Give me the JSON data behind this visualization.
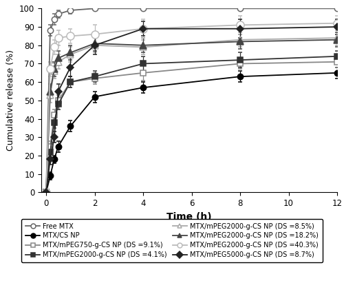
{
  "xlabel": "Time (h)",
  "ylabel": "Cumulative release (%)",
  "xlim": [
    -0.2,
    12
  ],
  "ylim": [
    0,
    100
  ],
  "xticks": [
    0,
    2,
    4,
    6,
    8,
    10,
    12
  ],
  "yticks": [
    0,
    10,
    20,
    30,
    40,
    50,
    60,
    70,
    80,
    90,
    100
  ],
  "series": [
    {
      "label": "Free MTX",
      "color": "#666666",
      "marker": "o",
      "fillstyle": "none",
      "linewidth": 1.3,
      "markersize": 6,
      "x": [
        0,
        0.167,
        0.333,
        0.5,
        1,
        2,
        4,
        8,
        12
      ],
      "y": [
        0,
        88,
        94,
        97,
        99,
        100,
        100,
        100,
        100
      ],
      "yerr": [
        0,
        3,
        3,
        2,
        2,
        1,
        1,
        1,
        1
      ]
    },
    {
      "label": "MTX/CS NP",
      "color": "#000000",
      "marker": "o",
      "fillstyle": "full",
      "linewidth": 1.3,
      "markersize": 6,
      "x": [
        0,
        0.167,
        0.333,
        0.5,
        1,
        2,
        4,
        8,
        12
      ],
      "y": [
        0,
        9,
        18,
        25,
        36,
        52,
        57,
        63,
        65
      ],
      "yerr": [
        0,
        2,
        2,
        3,
        3,
        3,
        3,
        3,
        3
      ]
    },
    {
      "label": "MTX/mPEG750-g-CS NP (DS =9.1%)",
      "color": "#888888",
      "marker": "s",
      "fillstyle": "none",
      "linewidth": 1.3,
      "markersize": 6,
      "x": [
        0,
        0.167,
        0.333,
        0.5,
        1,
        2,
        4,
        8,
        12
      ],
      "y": [
        0,
        25,
        42,
        50,
        60,
        62,
        65,
        70,
        71
      ],
      "yerr": [
        0,
        3,
        3,
        3,
        3,
        3,
        4,
        3,
        3
      ]
    },
    {
      "label": "MTX/mPEG2000-g-CS NP (DS =4.1%)",
      "color": "#333333",
      "marker": "s",
      "fillstyle": "full",
      "linewidth": 1.3,
      "markersize": 6,
      "x": [
        0,
        0.167,
        0.333,
        0.5,
        1,
        2,
        4,
        8,
        12
      ],
      "y": [
        0,
        22,
        38,
        48,
        60,
        63,
        70,
        72,
        74
      ],
      "yerr": [
        0,
        3,
        3,
        3,
        3,
        3,
        4,
        4,
        3
      ]
    },
    {
      "label": "MTX/mPEG2000-g-CS NP (DS =8.5%)",
      "color": "#aaaaaa",
      "marker": "^",
      "fillstyle": "none",
      "linewidth": 1.3,
      "markersize": 7,
      "x": [
        0,
        0.167,
        0.333,
        0.5,
        1,
        2,
        4,
        8,
        12
      ],
      "y": [
        0,
        53,
        66,
        71,
        75,
        80,
        79,
        83,
        84
      ],
      "yerr": [
        0,
        4,
        4,
        4,
        4,
        4,
        4,
        4,
        4
      ]
    },
    {
      "label": "MTX/mPEG2000-g-CS NP (DS =18.2%)",
      "color": "#444444",
      "marker": "^",
      "fillstyle": "full",
      "linewidth": 1.3,
      "markersize": 7,
      "x": [
        0,
        0.167,
        0.333,
        0.5,
        1,
        2,
        4,
        8,
        12
      ],
      "y": [
        0,
        55,
        67,
        73,
        76,
        81,
        80,
        82,
        83
      ],
      "yerr": [
        0,
        4,
        4,
        4,
        4,
        4,
        4,
        4,
        4
      ]
    },
    {
      "label": "MTX/mPEG2000-g-CS NP (DS =40.3%)",
      "color": "#bbbbbb",
      "marker": "o",
      "fillstyle": "none",
      "linewidth": 1.3,
      "markersize": 8,
      "x": [
        0,
        0.167,
        0.333,
        0.5,
        1,
        2,
        4,
        8,
        12
      ],
      "y": [
        0,
        67,
        79,
        84,
        85,
        86,
        89,
        91,
        92
      ],
      "yerr": [
        0,
        4,
        4,
        4,
        4,
        5,
        5,
        5,
        4
      ]
    },
    {
      "label": "MTX/mPEG5000-g-CS NP (DS =8.7%)",
      "color": "#222222",
      "marker": "D",
      "fillstyle": "full",
      "linewidth": 1.3,
      "markersize": 5,
      "x": [
        0,
        0.167,
        0.333,
        0.5,
        1,
        2,
        4,
        8,
        12
      ],
      "y": [
        0,
        18,
        30,
        55,
        68,
        80,
        89,
        89,
        90
      ],
      "yerr": [
        0,
        3,
        3,
        4,
        5,
        5,
        4,
        5,
        4
      ]
    }
  ],
  "legend_col1": [
    0,
    2,
    4,
    6
  ],
  "legend_col2": [
    1,
    3,
    5,
    7
  ],
  "legend_fontsize": 7.0,
  "xlabel_fontsize": 10,
  "ylabel_fontsize": 9,
  "tick_fontsize": 8.5,
  "background_color": "#ffffff"
}
